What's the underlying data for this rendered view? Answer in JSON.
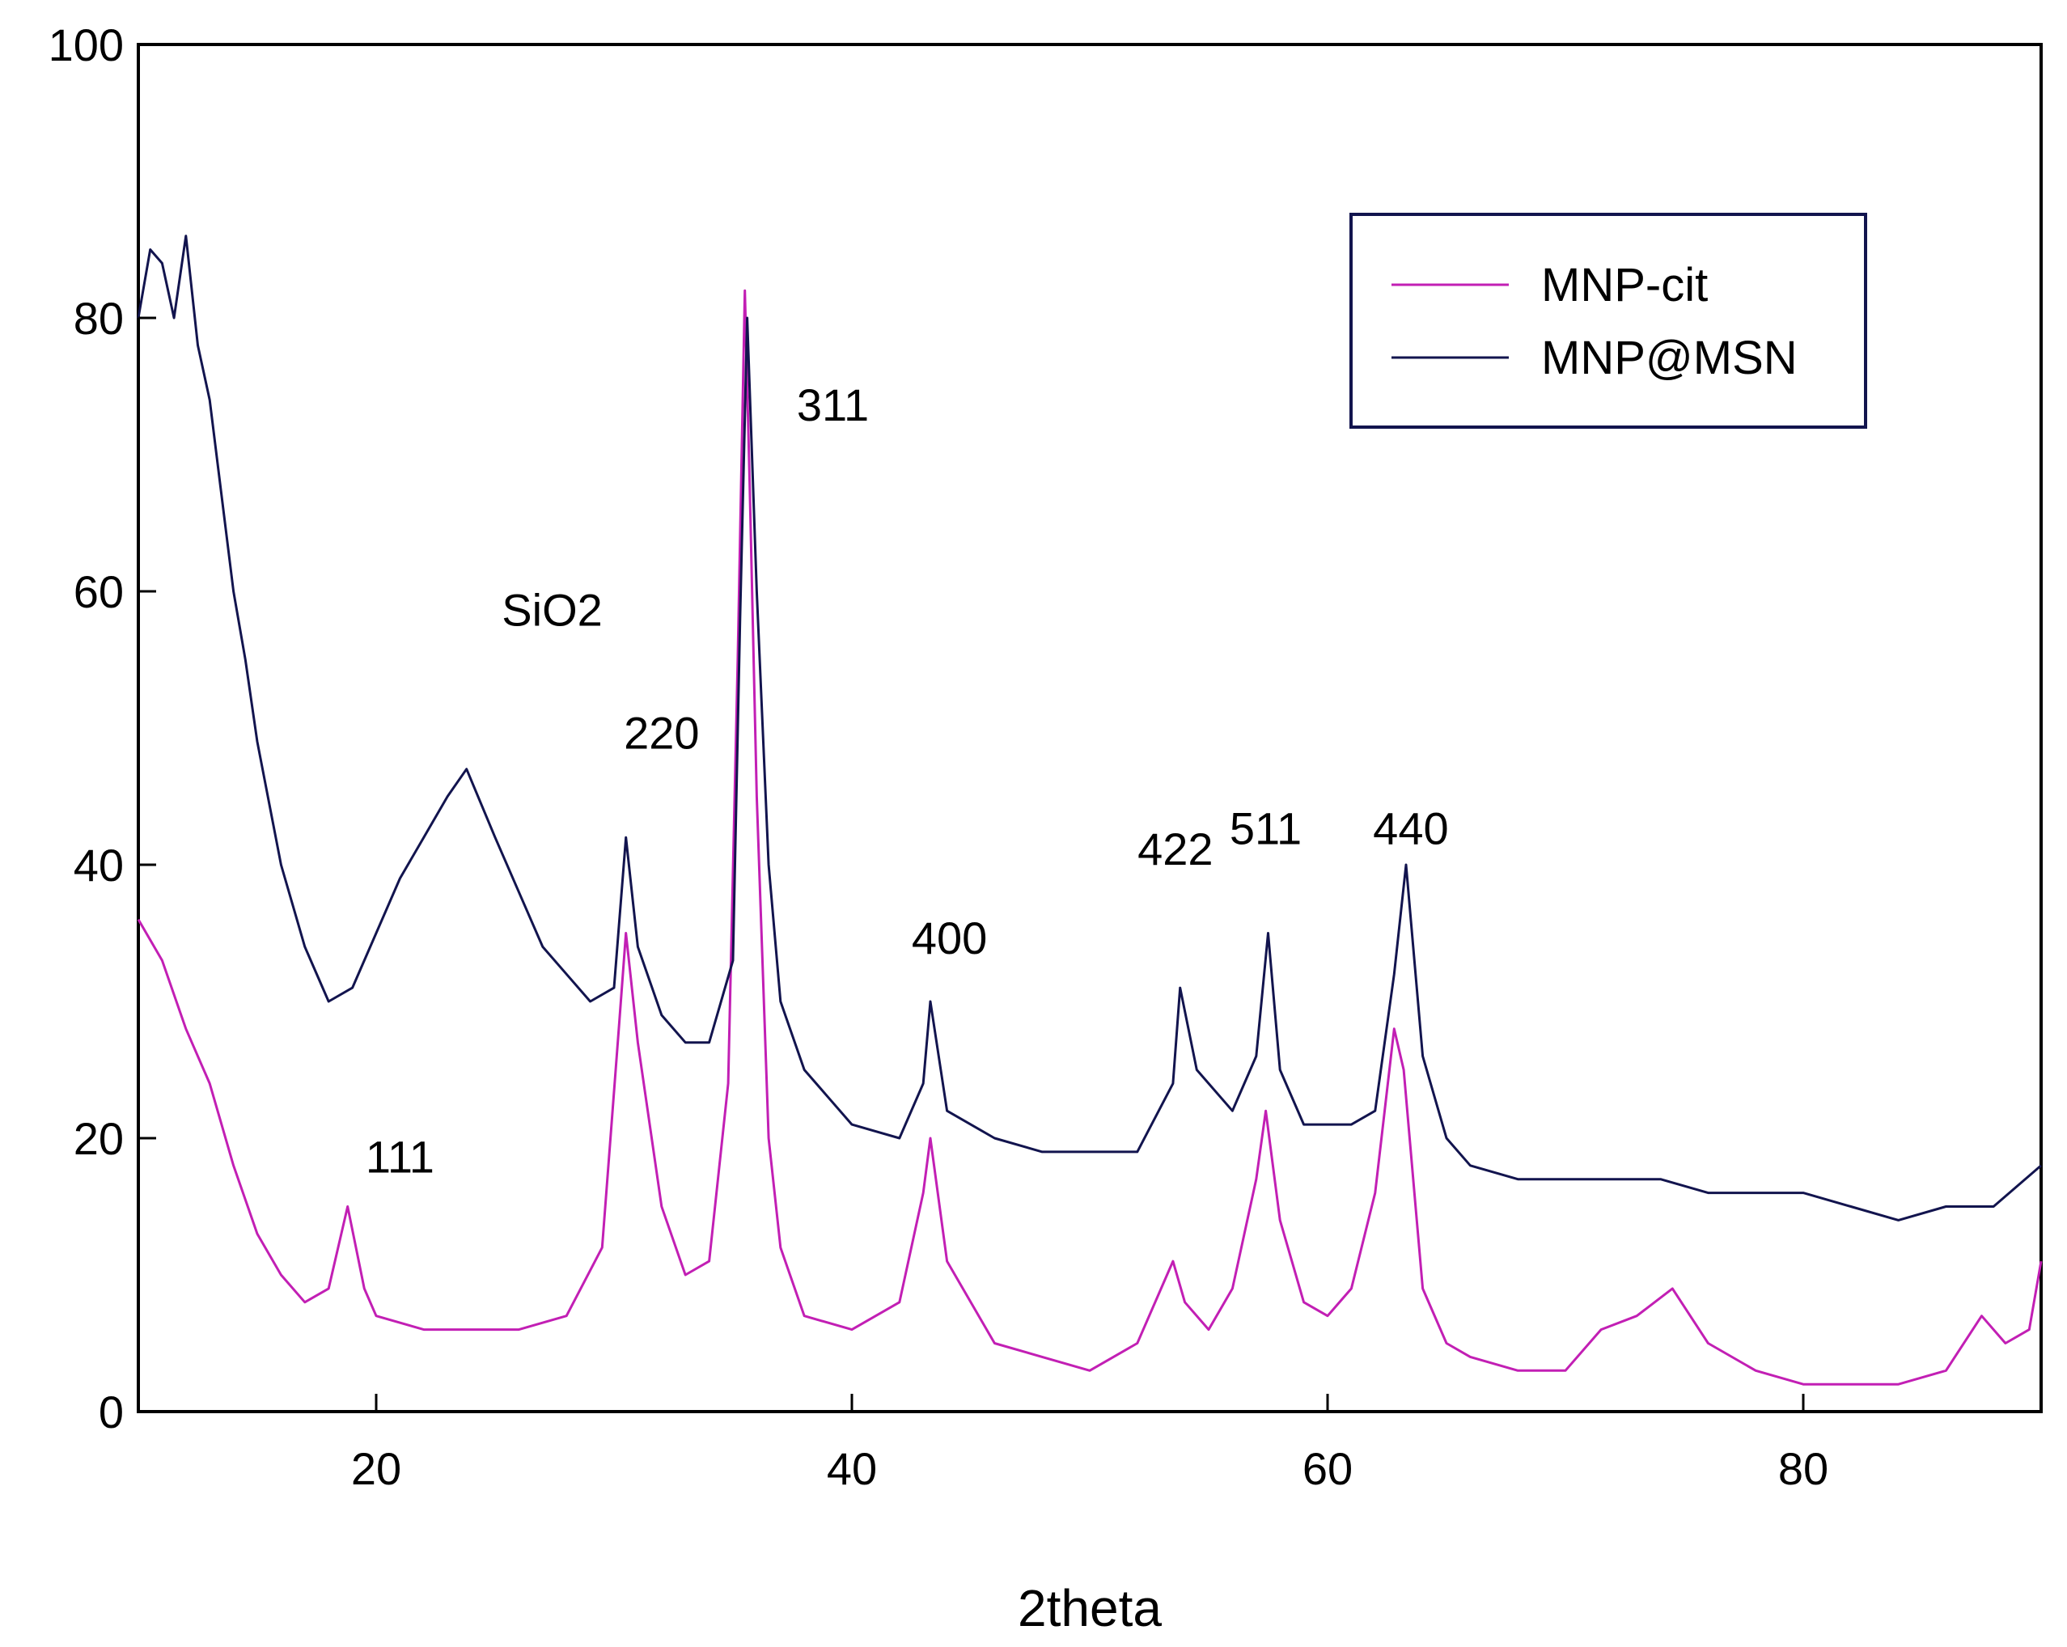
{
  "chart_data": {
    "type": "line",
    "title": "",
    "xlabel": "2theta",
    "ylabel": "",
    "xlim": [
      10,
      90
    ],
    "ylim": [
      0,
      100
    ],
    "x_ticks": [
      20,
      40,
      60,
      80
    ],
    "y_ticks": [
      0,
      20,
      40,
      60,
      80,
      100
    ],
    "grid": false,
    "legend_position": "top-right",
    "series": [
      {
        "name": "MNP-cit",
        "color": "#c21fb4",
        "x": [
          10,
          11,
          12,
          13,
          14,
          15,
          16,
          17,
          18,
          18.8,
          19.5,
          20,
          22,
          24,
          26,
          28,
          29.5,
          30.2,
          30.5,
          31,
          32,
          33,
          34,
          34.8,
          35.2,
          35.5,
          35.7,
          36,
          36.5,
          37,
          38,
          40,
          42,
          43,
          43.3,
          44,
          46,
          48,
          50,
          52,
          53.5,
          54,
          55,
          56,
          57,
          57.4,
          58,
          59,
          60,
          61,
          62,
          62.8,
          63.2,
          64,
          65,
          66,
          68,
          70,
          71.5,
          73,
          74.5,
          76,
          78,
          80,
          82,
          84,
          86,
          87.5,
          88.5,
          89.5,
          90
        ],
        "y": [
          36,
          33,
          28,
          24,
          18,
          13,
          10,
          8,
          9,
          15,
          9,
          7,
          6,
          6,
          6,
          7,
          12,
          28,
          35,
          27,
          15,
          10,
          11,
          24,
          55,
          82,
          68,
          45,
          20,
          12,
          7,
          6,
          8,
          16,
          20,
          11,
          5,
          4,
          3,
          5,
          11,
          8,
          6,
          9,
          17,
          22,
          14,
          8,
          7,
          9,
          16,
          28,
          25,
          9,
          5,
          4,
          3,
          3,
          6,
          7,
          9,
          5,
          3,
          2,
          2,
          2,
          3,
          7,
          5,
          6,
          11
        ]
      },
      {
        "name": "MNP@MSN",
        "color": "#12144e",
        "x": [
          10,
          10.5,
          11,
          11.5,
          12,
          12.5,
          13,
          13.5,
          14,
          14.5,
          15,
          16,
          17,
          18,
          19,
          20,
          21,
          22,
          23,
          23.8,
          25,
          26,
          27,
          28,
          29,
          30,
          30.5,
          31,
          32,
          33,
          34,
          35,
          35.3,
          35.6,
          36,
          36.5,
          37,
          38,
          39,
          40,
          42,
          43,
          43.3,
          44,
          46,
          48,
          50,
          52,
          53.5,
          53.8,
          54.5,
          56,
          57,
          57.5,
          58,
          59,
          60,
          61,
          62,
          62.8,
          63.3,
          64,
          65,
          66,
          68,
          70,
          72,
          74,
          76,
          78,
          80,
          82,
          84,
          86,
          88,
          90
        ],
        "y": [
          80,
          85,
          84,
          80,
          86,
          78,
          74,
          67,
          60,
          55,
          49,
          40,
          34,
          30,
          31,
          35,
          39,
          42,
          45,
          47,
          42,
          38,
          34,
          32,
          30,
          31,
          42,
          34,
          29,
          27,
          27,
          33,
          58,
          80,
          60,
          40,
          30,
          25,
          23,
          21,
          20,
          24,
          30,
          22,
          20,
          19,
          19,
          19,
          24,
          31,
          25,
          22,
          26,
          35,
          25,
          21,
          21,
          21,
          22,
          32,
          40,
          26,
          20,
          18,
          17,
          17,
          17,
          17,
          16,
          16,
          16,
          15,
          14,
          15,
          15,
          18
        ]
      }
    ],
    "annotations": [
      {
        "text": "SiO2",
        "x": 27.4,
        "y": 57.5
      },
      {
        "text": "220",
        "x": 32,
        "y": 48.5
      },
      {
        "text": "311",
        "x": 39.2,
        "y": 72.5
      },
      {
        "text": "111",
        "x": 21,
        "y": 17.5
      },
      {
        "text": "400",
        "x": 44.1,
        "y": 33.5
      },
      {
        "text": "422",
        "x": 53.6,
        "y": 40
      },
      {
        "text": "511",
        "x": 57.4,
        "y": 41.5
      },
      {
        "text": "440",
        "x": 63.5,
        "y": 41.5
      }
    ]
  }
}
